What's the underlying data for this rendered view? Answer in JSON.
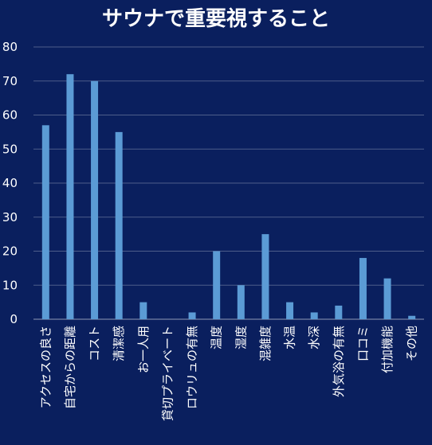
{
  "chart_data": {
    "type": "bar",
    "title": "サウナで重要視すること",
    "categories": [
      "アクセスの良さ",
      "自宅からの距離",
      "コスト",
      "清潔感",
      "お一人用",
      "貸切プライベート",
      "ロウリュの有無",
      "温度",
      "湿度",
      "混雑度",
      "水温",
      "水深",
      "外気浴の有無",
      "口コミ",
      "付加機能",
      "その他"
    ],
    "values": [
      57,
      72,
      70,
      55,
      5,
      0,
      2,
      20,
      10,
      25,
      5,
      2,
      4,
      18,
      12,
      1
    ],
    "ylim": [
      0,
      80
    ],
    "yticks": [
      0,
      10,
      20,
      30,
      40,
      50,
      60,
      70,
      80
    ],
    "grid": true,
    "colors": {
      "background": "#0a1f5e",
      "bar": "#5b9bd5",
      "text": "#ffffff"
    }
  }
}
